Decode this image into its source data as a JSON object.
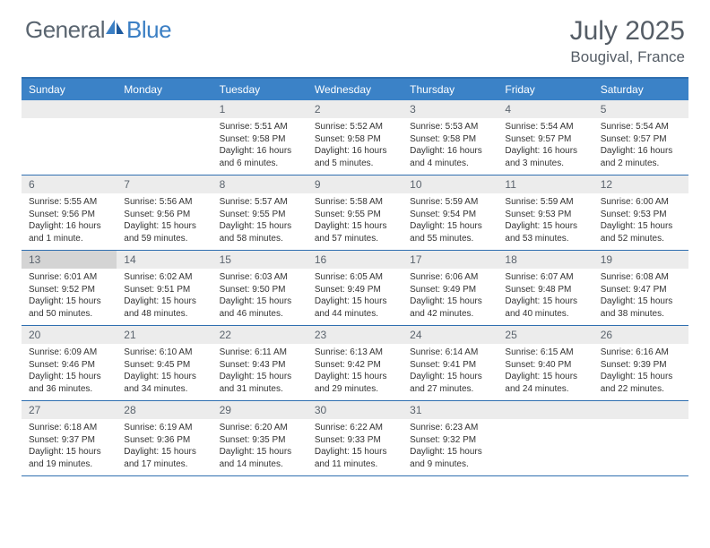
{
  "logo": {
    "text1": "General",
    "text2": "Blue"
  },
  "title": "July 2025",
  "location": "Bougival, France",
  "dayNames": [
    "Sunday",
    "Monday",
    "Tuesday",
    "Wednesday",
    "Thursday",
    "Friday",
    "Saturday"
  ],
  "colors": {
    "headerBg": "#3b82c7",
    "ruleLine": "#2f6fb0",
    "dayNumBg": "#ececec",
    "currentBg": "#d4d4d4",
    "logoGray": "#5a6570",
    "logoBlue": "#3b7fc4"
  },
  "weeks": [
    [
      null,
      null,
      {
        "n": "1",
        "sr": "5:51 AM",
        "ss": "9:58 PM",
        "dl": "16 hours and 6 minutes."
      },
      {
        "n": "2",
        "sr": "5:52 AM",
        "ss": "9:58 PM",
        "dl": "16 hours and 5 minutes."
      },
      {
        "n": "3",
        "sr": "5:53 AM",
        "ss": "9:58 PM",
        "dl": "16 hours and 4 minutes."
      },
      {
        "n": "4",
        "sr": "5:54 AM",
        "ss": "9:57 PM",
        "dl": "16 hours and 3 minutes."
      },
      {
        "n": "5",
        "sr": "5:54 AM",
        "ss": "9:57 PM",
        "dl": "16 hours and 2 minutes."
      }
    ],
    [
      {
        "n": "6",
        "sr": "5:55 AM",
        "ss": "9:56 PM",
        "dl": "16 hours and 1 minute."
      },
      {
        "n": "7",
        "sr": "5:56 AM",
        "ss": "9:56 PM",
        "dl": "15 hours and 59 minutes."
      },
      {
        "n": "8",
        "sr": "5:57 AM",
        "ss": "9:55 PM",
        "dl": "15 hours and 58 minutes."
      },
      {
        "n": "9",
        "sr": "5:58 AM",
        "ss": "9:55 PM",
        "dl": "15 hours and 57 minutes."
      },
      {
        "n": "10",
        "sr": "5:59 AM",
        "ss": "9:54 PM",
        "dl": "15 hours and 55 minutes."
      },
      {
        "n": "11",
        "sr": "5:59 AM",
        "ss": "9:53 PM",
        "dl": "15 hours and 53 minutes."
      },
      {
        "n": "12",
        "sr": "6:00 AM",
        "ss": "9:53 PM",
        "dl": "15 hours and 52 minutes."
      }
    ],
    [
      {
        "n": "13",
        "sr": "6:01 AM",
        "ss": "9:52 PM",
        "dl": "15 hours and 50 minutes.",
        "cur": true
      },
      {
        "n": "14",
        "sr": "6:02 AM",
        "ss": "9:51 PM",
        "dl": "15 hours and 48 minutes."
      },
      {
        "n": "15",
        "sr": "6:03 AM",
        "ss": "9:50 PM",
        "dl": "15 hours and 46 minutes."
      },
      {
        "n": "16",
        "sr": "6:05 AM",
        "ss": "9:49 PM",
        "dl": "15 hours and 44 minutes."
      },
      {
        "n": "17",
        "sr": "6:06 AM",
        "ss": "9:49 PM",
        "dl": "15 hours and 42 minutes."
      },
      {
        "n": "18",
        "sr": "6:07 AM",
        "ss": "9:48 PM",
        "dl": "15 hours and 40 minutes."
      },
      {
        "n": "19",
        "sr": "6:08 AM",
        "ss": "9:47 PM",
        "dl": "15 hours and 38 minutes."
      }
    ],
    [
      {
        "n": "20",
        "sr": "6:09 AM",
        "ss": "9:46 PM",
        "dl": "15 hours and 36 minutes."
      },
      {
        "n": "21",
        "sr": "6:10 AM",
        "ss": "9:45 PM",
        "dl": "15 hours and 34 minutes."
      },
      {
        "n": "22",
        "sr": "6:11 AM",
        "ss": "9:43 PM",
        "dl": "15 hours and 31 minutes."
      },
      {
        "n": "23",
        "sr": "6:13 AM",
        "ss": "9:42 PM",
        "dl": "15 hours and 29 minutes."
      },
      {
        "n": "24",
        "sr": "6:14 AM",
        "ss": "9:41 PM",
        "dl": "15 hours and 27 minutes."
      },
      {
        "n": "25",
        "sr": "6:15 AM",
        "ss": "9:40 PM",
        "dl": "15 hours and 24 minutes."
      },
      {
        "n": "26",
        "sr": "6:16 AM",
        "ss": "9:39 PM",
        "dl": "15 hours and 22 minutes."
      }
    ],
    [
      {
        "n": "27",
        "sr": "6:18 AM",
        "ss": "9:37 PM",
        "dl": "15 hours and 19 minutes."
      },
      {
        "n": "28",
        "sr": "6:19 AM",
        "ss": "9:36 PM",
        "dl": "15 hours and 17 minutes."
      },
      {
        "n": "29",
        "sr": "6:20 AM",
        "ss": "9:35 PM",
        "dl": "15 hours and 14 minutes."
      },
      {
        "n": "30",
        "sr": "6:22 AM",
        "ss": "9:33 PM",
        "dl": "15 hours and 11 minutes."
      },
      {
        "n": "31",
        "sr": "6:23 AM",
        "ss": "9:32 PM",
        "dl": "15 hours and 9 minutes."
      },
      null,
      null
    ]
  ],
  "labels": {
    "sunrise": "Sunrise:",
    "sunset": "Sunset:",
    "daylight": "Daylight:"
  }
}
